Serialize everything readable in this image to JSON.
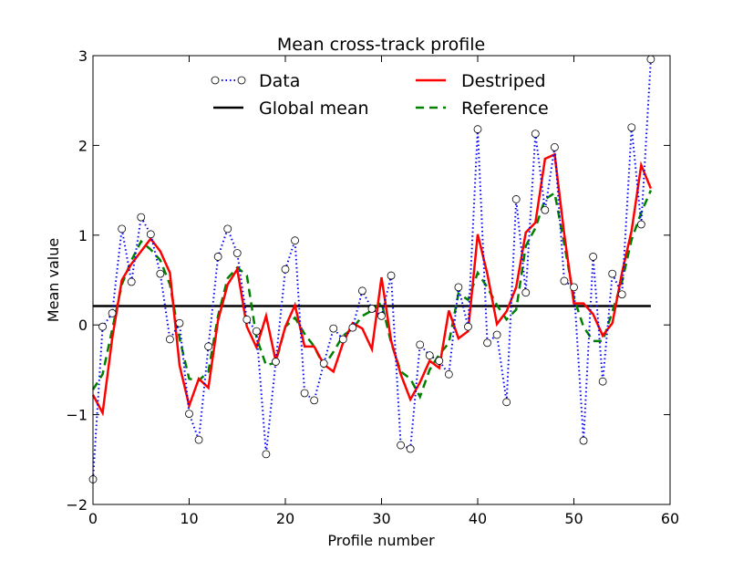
{
  "chart_data": {
    "type": "line",
    "title": "Mean cross-track profile",
    "xlabel": "Profile number",
    "ylabel": "Mean value",
    "xlim": [
      0,
      60
    ],
    "ylim": [
      -2,
      3
    ],
    "xticks": [
      0,
      10,
      20,
      30,
      40,
      50,
      60
    ],
    "yticks": [
      -2,
      -1,
      0,
      1,
      2,
      3
    ],
    "xtick_labels": [
      "0",
      "10",
      "20",
      "30",
      "40",
      "50",
      "60"
    ],
    "ytick_labels": [
      "−2",
      "−1",
      "0",
      "1",
      "2",
      "3"
    ],
    "grid": false,
    "legend_location": "top",
    "x": [
      0,
      1,
      2,
      3,
      4,
      5,
      6,
      7,
      8,
      9,
      10,
      11,
      12,
      13,
      14,
      15,
      16,
      17,
      18,
      19,
      20,
      21,
      22,
      23,
      24,
      25,
      26,
      27,
      28,
      29,
      30,
      31,
      32,
      33,
      34,
      35,
      36,
      37,
      38,
      39,
      40,
      41,
      42,
      43,
      44,
      45,
      46,
      47,
      48,
      49,
      50,
      51,
      52,
      53,
      54,
      55,
      56,
      57,
      58
    ],
    "series": [
      {
        "name": "Data",
        "color": "#0000ff",
        "style": "dotted-circles",
        "values": [
          -1.72,
          -0.02,
          0.13,
          1.07,
          0.48,
          1.2,
          1.01,
          0.57,
          -0.16,
          0.02,
          -0.99,
          -1.28,
          -0.24,
          0.76,
          1.07,
          0.8,
          0.06,
          -0.07,
          -1.44,
          -0.41,
          0.62,
          0.94,
          -0.76,
          -0.84,
          -0.43,
          -0.04,
          -0.16,
          -0.03,
          0.38,
          0.18,
          0.1,
          0.55,
          -1.34,
          -1.38,
          -0.22,
          -0.34,
          -0.4,
          -0.55,
          0.42,
          -0.02,
          2.18,
          -0.2,
          -0.11,
          -0.86,
          1.4,
          0.36,
          2.13,
          1.28,
          1.98,
          0.49,
          0.42,
          -1.29,
          0.76,
          -0.63,
          0.57,
          0.34,
          2.2,
          1.12,
          2.96
        ]
      },
      {
        "name": "Destriped",
        "color": "#ff0000",
        "style": "solid",
        "values": [
          -0.78,
          -0.98,
          -0.15,
          0.5,
          0.68,
          0.82,
          0.96,
          0.82,
          0.58,
          -0.45,
          -0.9,
          -0.6,
          -0.7,
          0.05,
          0.45,
          0.62,
          -0.02,
          -0.25,
          0.1,
          -0.4,
          -0.02,
          0.22,
          -0.24,
          -0.24,
          -0.44,
          -0.52,
          -0.2,
          0.02,
          -0.04,
          -0.27,
          0.53,
          -0.18,
          -0.55,
          -0.83,
          -0.64,
          -0.4,
          -0.48,
          0.16,
          -0.15,
          -0.07,
          1.01,
          0.57,
          0.01,
          0.15,
          0.42,
          1.03,
          1.14,
          1.85,
          1.9,
          1.01,
          0.24,
          0.24,
          0.12,
          -0.12,
          0.02,
          0.58,
          1.05,
          1.78,
          1.52
        ]
      },
      {
        "name": "Global mean",
        "color": "#000000",
        "style": "solid",
        "values": [
          0.21,
          0.21,
          0.21,
          0.21,
          0.21,
          0.21,
          0.21,
          0.21,
          0.21,
          0.21,
          0.21,
          0.21,
          0.21,
          0.21,
          0.21,
          0.21,
          0.21,
          0.21,
          0.21,
          0.21,
          0.21,
          0.21,
          0.21,
          0.21,
          0.21,
          0.21,
          0.21,
          0.21,
          0.21,
          0.21,
          0.21,
          0.21,
          0.21,
          0.21,
          0.21,
          0.21,
          0.21,
          0.21,
          0.21,
          0.21,
          0.21,
          0.21,
          0.21,
          0.21,
          0.21,
          0.21,
          0.21,
          0.21,
          0.21,
          0.21,
          0.21,
          0.21,
          0.21,
          0.21,
          0.21,
          0.21,
          0.21,
          0.21,
          0.21
        ]
      },
      {
        "name": "Reference",
        "color": "#008000",
        "style": "dashed",
        "values": [
          -0.72,
          -0.55,
          -0.05,
          0.45,
          0.72,
          0.93,
          0.84,
          0.72,
          0.45,
          -0.15,
          -0.6,
          -0.62,
          -0.52,
          0.1,
          0.52,
          0.64,
          0.55,
          -0.14,
          -0.45,
          -0.42,
          -0.02,
          0.08,
          -0.1,
          -0.24,
          -0.46,
          -0.3,
          -0.12,
          -0.04,
          0.1,
          0.16,
          0.25,
          -0.2,
          -0.52,
          -0.6,
          -0.8,
          -0.5,
          -0.33,
          -0.2,
          0.35,
          0.28,
          0.58,
          0.42,
          0.22,
          0.06,
          0.17,
          0.88,
          1.08,
          1.4,
          1.47,
          0.9,
          0.3,
          -0.02,
          -0.18,
          -0.18,
          0.15,
          0.48,
          0.95,
          1.25,
          1.5
        ]
      }
    ],
    "legend": {
      "entries": [
        {
          "name": "Data",
          "color": "#0000ff",
          "style": "dotted-circles"
        },
        {
          "name": "Destriped",
          "color": "#ff0000",
          "style": "solid"
        },
        {
          "name": "Global mean",
          "color": "#000000",
          "style": "solid"
        },
        {
          "name": "Reference",
          "color": "#008000",
          "style": "dashed"
        }
      ]
    }
  }
}
